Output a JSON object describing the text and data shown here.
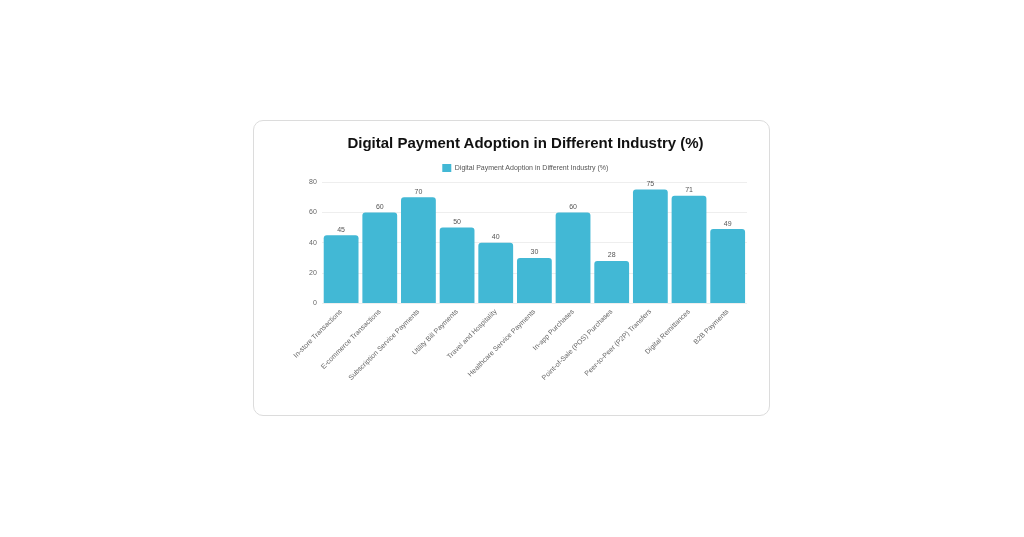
{
  "chart_data": {
    "type": "bar",
    "title": "Digital Payment Adoption in Different Industry (%)",
    "categories": [
      "In-store Transactions",
      "E-commerce Transactions",
      "Subscription Service Payments",
      "Utility Bill Payments",
      "Travel and Hospitality",
      "Healthcare Service Payments",
      "In-app Purchases",
      "Point-of-Sale (POS) Purchases",
      "Peer-to-Peer (P2P) Transfers",
      "Digital Remittances",
      "B2B Payments"
    ],
    "series": [
      {
        "name": "Digital Payment Adoption in Different Industry (%)",
        "color": "#42b8d5",
        "values": [
          45,
          60,
          70,
          50,
          40,
          30,
          60,
          28,
          75,
          71,
          49
        ]
      }
    ],
    "ylim": [
      0,
      80
    ],
    "yticks": [
      0,
      20,
      40,
      60,
      80
    ],
    "grid": "y",
    "legend": "top",
    "data_labels": true
  }
}
